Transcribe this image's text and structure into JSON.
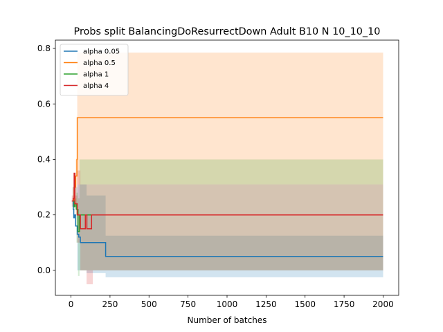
{
  "chart_data": {
    "type": "line",
    "title": "Probs split BalancingDoResurrectDown Adult B10 N 10_10_10",
    "xlabel": "Number of batches",
    "ylabel": "",
    "xlim": [
      -100,
      2100
    ],
    "ylim": [
      -0.09,
      0.83
    ],
    "x_ticks": [
      0,
      250,
      500,
      750,
      1000,
      1250,
      1500,
      1750,
      2000
    ],
    "y_ticks": [
      0.0,
      0.2,
      0.4,
      0.6,
      0.8
    ],
    "grid": false,
    "legend_position": "top-left",
    "series": [
      {
        "name": "alpha 0.05",
        "color": "#1f77b4",
        "points": [
          [
            10,
            0.25
          ],
          [
            15,
            0.22
          ],
          [
            18,
            0.19
          ],
          [
            22,
            0.2
          ],
          [
            30,
            0.16
          ],
          [
            40,
            0.13
          ],
          [
            50,
            0.12
          ],
          [
            60,
            0.1
          ],
          [
            100,
            0.1
          ],
          [
            220,
            0.1
          ],
          [
            222,
            0.05
          ],
          [
            2000,
            0.05
          ]
        ],
        "band": [
          [
            10,
            0.23,
            0.3
          ],
          [
            40,
            0.0,
            0.31
          ],
          [
            60,
            0.0,
            0.31
          ],
          [
            100,
            -0.01,
            0.27
          ],
          [
            220,
            -0.01,
            0.27
          ],
          [
            222,
            -0.025,
            0.125
          ],
          [
            2000,
            -0.025,
            0.125
          ]
        ]
      },
      {
        "name": "alpha 0.5",
        "color": "#ff7f0e",
        "points": [
          [
            10,
            0.25
          ],
          [
            20,
            0.3
          ],
          [
            30,
            0.34
          ],
          [
            38,
            0.4
          ],
          [
            40,
            0.55
          ],
          [
            2000,
            0.55
          ]
        ],
        "band": [
          [
            10,
            0.23,
            0.3
          ],
          [
            30,
            0.2,
            0.4
          ],
          [
            38,
            0.31,
            0.48
          ],
          [
            40,
            0.31,
            0.785
          ],
          [
            2000,
            0.31,
            0.785
          ]
        ]
      },
      {
        "name": "alpha 1",
        "color": "#2ca02c",
        "points": [
          [
            10,
            0.25
          ],
          [
            20,
            0.23
          ],
          [
            25,
            0.24
          ],
          [
            35,
            0.22
          ],
          [
            45,
            0.14
          ],
          [
            55,
            0.2
          ],
          [
            2000,
            0.2
          ]
        ],
        "band": [
          [
            10,
            0.22,
            0.26
          ],
          [
            35,
            0.1,
            0.28
          ],
          [
            45,
            -0.02,
            0.26
          ],
          [
            55,
            0.0,
            0.4
          ],
          [
            2000,
            0.0,
            0.4
          ]
        ]
      },
      {
        "name": "alpha 4",
        "color": "#d62728",
        "points": [
          [
            5,
            0.25
          ],
          [
            15,
            0.26
          ],
          [
            20,
            0.35
          ],
          [
            25,
            0.24
          ],
          [
            40,
            0.2
          ],
          [
            60,
            0.15
          ],
          [
            90,
            0.15
          ],
          [
            92,
            0.2
          ],
          [
            100,
            0.2
          ],
          [
            102,
            0.15
          ],
          [
            130,
            0.15
          ],
          [
            132,
            0.2
          ],
          [
            220,
            0.2
          ],
          [
            222,
            0.2
          ],
          [
            2000,
            0.2
          ]
        ],
        "band": [
          [
            5,
            0.23,
            0.27
          ],
          [
            40,
            0.1,
            0.36
          ],
          [
            60,
            0.0,
            0.31
          ],
          [
            100,
            -0.05,
            0.31
          ],
          [
            140,
            0.0,
            0.31
          ],
          [
            2000,
            0.0,
            0.4
          ]
        ]
      }
    ]
  }
}
